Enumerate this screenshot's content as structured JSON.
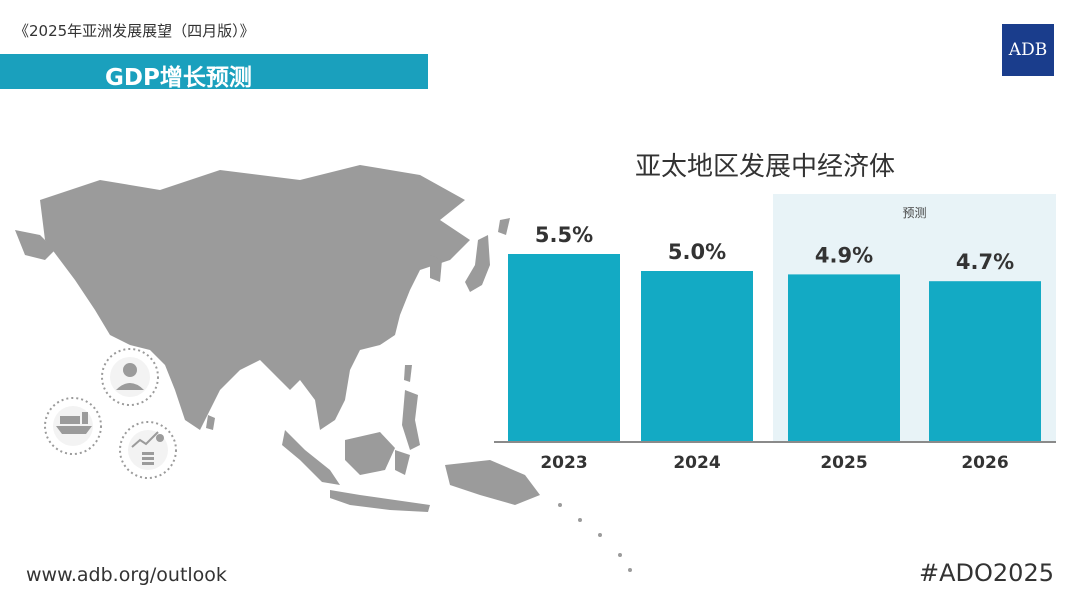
{
  "header": {
    "publication_title": "《2025年亚洲发展展望（四月版）》",
    "section_title": "GDP增长预测",
    "logo_text": "ADB"
  },
  "forecast_label": "预测",
  "footer": {
    "url": "www.adb.org/outlook",
    "hashtag": "#ADO2025"
  },
  "colors": {
    "bar": "#13aac4",
    "banner": "#1aa0bd",
    "logo": "#1a3d8c",
    "forecast_bg": "#e8f3f7",
    "map": "#9b9b9b"
  },
  "chart_data": {
    "type": "bar",
    "title": "亚太地区发展中经济体",
    "categories": [
      "2023",
      "2024",
      "2025",
      "2026"
    ],
    "values": [
      5.5,
      5.0,
      4.9,
      4.7
    ],
    "labels": [
      "5.5%",
      "5.0%",
      "4.9%",
      "4.7%"
    ],
    "forecast_categories": [
      "2025",
      "2026"
    ],
    "ylim": [
      0,
      5.5
    ]
  }
}
